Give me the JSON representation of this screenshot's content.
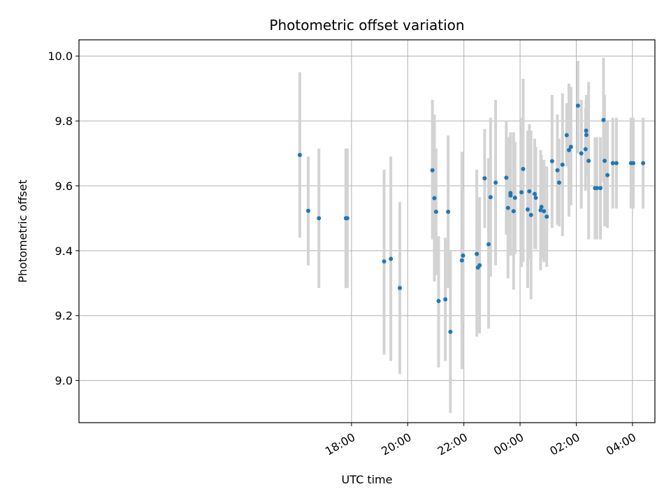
{
  "chart_data": {
    "type": "scatter",
    "title": "Photometric offset variation",
    "xlabel": "UTC time",
    "ylabel": "Photometric offset",
    "x_unit": "hours relative to 00:00 UTC",
    "xlim": [
      -15.7,
      4.8
    ],
    "ylim": [
      8.87,
      10.05
    ],
    "grid": true,
    "x_ticks": [
      {
        "value": -6,
        "label": "18:00"
      },
      {
        "value": -4,
        "label": "20:00"
      },
      {
        "value": -2,
        "label": "22:00"
      },
      {
        "value": 0,
        "label": "00:00"
      },
      {
        "value": 2,
        "label": "02:00"
      },
      {
        "value": 4,
        "label": "04:00"
      }
    ],
    "y_ticks": [
      {
        "value": 9.0,
        "label": "9.0"
      },
      {
        "value": 9.2,
        "label": "9.2"
      },
      {
        "value": 9.4,
        "label": "9.4"
      },
      {
        "value": 9.6,
        "label": "9.6"
      },
      {
        "value": 9.8,
        "label": "9.8"
      },
      {
        "value": 10.0,
        "label": "10.0"
      }
    ],
    "colors": {
      "points": "#1f77b4",
      "errorbars": "#d3d3d3",
      "grid": "#b0b0b0"
    },
    "points": [
      {
        "x": -7.84,
        "y": 9.695,
        "lo": 9.44,
        "hi": 9.95
      },
      {
        "x": -7.54,
        "y": 9.523,
        "lo": 9.355,
        "hi": 9.69
      },
      {
        "x": -7.16,
        "y": 9.5,
        "lo": 9.285,
        "hi": 9.715
      },
      {
        "x": -6.2,
        "y": 9.5,
        "lo": 9.285,
        "hi": 9.715
      },
      {
        "x": -6.15,
        "y": 9.5,
        "lo": 9.285,
        "hi": 9.715
      },
      {
        "x": -4.84,
        "y": 9.367,
        "lo": 9.08,
        "hi": 9.65
      },
      {
        "x": -4.6,
        "y": 9.375,
        "lo": 9.06,
        "hi": 9.69
      },
      {
        "x": -4.28,
        "y": 9.285,
        "lo": 9.02,
        "hi": 9.55
      },
      {
        "x": -3.12,
        "y": 9.648,
        "lo": 9.435,
        "hi": 9.865
      },
      {
        "x": -3.05,
        "y": 9.562,
        "lo": 9.305,
        "hi": 9.82
      },
      {
        "x": -2.99,
        "y": 9.52,
        "lo": 9.325,
        "hi": 9.715
      },
      {
        "x": -2.9,
        "y": 9.245,
        "lo": 9.04,
        "hi": 9.445
      },
      {
        "x": -2.66,
        "y": 9.25,
        "lo": 9.06,
        "hi": 9.44
      },
      {
        "x": -2.56,
        "y": 9.52,
        "lo": 9.285,
        "hi": 9.755
      },
      {
        "x": -2.48,
        "y": 9.15,
        "lo": 8.9,
        "hi": 9.4
      },
      {
        "x": -2.07,
        "y": 9.37,
        "lo": 9.035,
        "hi": 9.705
      },
      {
        "x": -2.03,
        "y": 9.385,
        "lo": 9.18,
        "hi": 9.59
      },
      {
        "x": -1.54,
        "y": 9.39,
        "lo": 9.135,
        "hi": 9.65
      },
      {
        "x": -1.5,
        "y": 9.348,
        "lo": 9.21,
        "hi": 9.485
      },
      {
        "x": -1.44,
        "y": 9.355,
        "lo": 9.145,
        "hi": 9.565
      },
      {
        "x": -1.26,
        "y": 9.623,
        "lo": 9.47,
        "hi": 9.775
      },
      {
        "x": -1.12,
        "y": 9.42,
        "lo": 9.16,
        "hi": 9.685
      },
      {
        "x": -1.05,
        "y": 9.565,
        "lo": 9.32,
        "hi": 9.81
      },
      {
        "x": -0.87,
        "y": 9.61,
        "lo": 9.355,
        "hi": 9.865
      },
      {
        "x": -0.49,
        "y": 9.625,
        "lo": 9.45,
        "hi": 9.8
      },
      {
        "x": -0.43,
        "y": 9.532,
        "lo": 9.315,
        "hi": 9.75
      },
      {
        "x": -0.34,
        "y": 9.578,
        "lo": 9.39,
        "hi": 9.765
      },
      {
        "x": -0.34,
        "y": 9.57,
        "lo": 9.385,
        "hi": 9.755
      },
      {
        "x": -0.23,
        "y": 9.522,
        "lo": 9.28,
        "hi": 9.765
      },
      {
        "x": -0.18,
        "y": 9.563,
        "lo": 9.39,
        "hi": 9.735
      },
      {
        "x": 0.05,
        "y": 9.58,
        "lo": 9.35,
        "hi": 9.81
      },
      {
        "x": 0.11,
        "y": 9.652,
        "lo": 9.365,
        "hi": 9.93
      },
      {
        "x": 0.27,
        "y": 9.527,
        "lo": 9.285,
        "hi": 9.77
      },
      {
        "x": 0.33,
        "y": 9.583,
        "lo": 9.375,
        "hi": 9.79
      },
      {
        "x": 0.39,
        "y": 9.51,
        "lo": 9.25,
        "hi": 9.77
      },
      {
        "x": 0.52,
        "y": 9.575,
        "lo": 9.405,
        "hi": 9.745
      },
      {
        "x": 0.56,
        "y": 9.563,
        "lo": 9.405,
        "hi": 9.72
      },
      {
        "x": 0.73,
        "y": 9.525,
        "lo": 9.34,
        "hi": 9.71
      },
      {
        "x": 0.76,
        "y": 9.535,
        "lo": 9.375,
        "hi": 9.695
      },
      {
        "x": 0.85,
        "y": 9.522,
        "lo": 9.365,
        "hi": 9.68
      },
      {
        "x": 0.95,
        "y": 9.505,
        "lo": 9.35,
        "hi": 9.66
      },
      {
        "x": 1.14,
        "y": 9.676,
        "lo": 9.47,
        "hi": 9.88
      },
      {
        "x": 1.33,
        "y": 9.648,
        "lo": 9.48,
        "hi": 9.82
      },
      {
        "x": 1.39,
        "y": 9.61,
        "lo": 9.475,
        "hi": 9.745
      },
      {
        "x": 1.51,
        "y": 9.665,
        "lo": 9.445,
        "hi": 9.885
      },
      {
        "x": 1.66,
        "y": 9.756,
        "lo": 9.66,
        "hi": 9.855
      },
      {
        "x": 1.74,
        "y": 9.71,
        "lo": 9.505,
        "hi": 9.915
      },
      {
        "x": 1.81,
        "y": 9.72,
        "lo": 9.54,
        "hi": 9.905
      },
      {
        "x": 2.06,
        "y": 9.847,
        "lo": 9.7,
        "hi": 9.985
      },
      {
        "x": 2.18,
        "y": 9.7,
        "lo": 9.53,
        "hi": 9.865
      },
      {
        "x": 2.33,
        "y": 9.713,
        "lo": 9.585,
        "hi": 9.84
      },
      {
        "x": 2.35,
        "y": 9.77,
        "lo": 9.675,
        "hi": 9.865
      },
      {
        "x": 2.36,
        "y": 9.757,
        "lo": 9.63,
        "hi": 9.88
      },
      {
        "x": 2.44,
        "y": 9.677,
        "lo": 9.435,
        "hi": 9.92
      },
      {
        "x": 2.67,
        "y": 9.593,
        "lo": 9.435,
        "hi": 9.75
      },
      {
        "x": 2.73,
        "y": 9.593,
        "lo": 9.435,
        "hi": 9.75
      },
      {
        "x": 2.86,
        "y": 9.593,
        "lo": 9.435,
        "hi": 9.75
      },
      {
        "x": 2.97,
        "y": 9.803,
        "lo": 9.61,
        "hi": 9.995
      },
      {
        "x": 3.01,
        "y": 9.677,
        "lo": 9.475,
        "hi": 9.88
      },
      {
        "x": 3.11,
        "y": 9.633,
        "lo": 9.47,
        "hi": 9.8
      },
      {
        "x": 3.3,
        "y": 9.67,
        "lo": 9.53,
        "hi": 9.81
      },
      {
        "x": 3.43,
        "y": 9.67,
        "lo": 9.53,
        "hi": 9.81
      },
      {
        "x": 3.95,
        "y": 9.67,
        "lo": 9.53,
        "hi": 9.81
      },
      {
        "x": 4.03,
        "y": 9.67,
        "lo": 9.53,
        "hi": 9.81
      },
      {
        "x": 4.38,
        "y": 9.67,
        "lo": 9.53,
        "hi": 9.81
      }
    ]
  }
}
